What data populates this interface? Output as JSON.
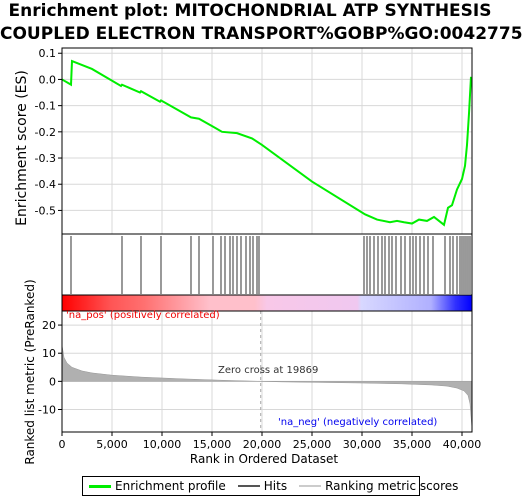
{
  "title": {
    "line1": "Enrichment plot: MITOCHONDRIAL ATP SYNTHESIS",
    "line2": "COUPLED ELECTRON TRANSPORT%GOBP%GO:0042775"
  },
  "colors": {
    "es_line": "#00ee00",
    "hits": "#000000",
    "ranking_fill": "#b0b0b0",
    "pos_label": "#ee0000",
    "neg_label": "#0000ee",
    "bar_red": "#ff0000",
    "bar_pink": "#ffc0cb",
    "bar_blue": "#0000ff"
  },
  "chart_data": [
    {
      "type": "line",
      "name": "enrichment-profile",
      "ylabel": "Enrichment score (ES)",
      "xlim": [
        0,
        41000
      ],
      "ylim": [
        -0.59,
        0.12
      ],
      "yticks": [
        0.1,
        0.0,
        -0.1,
        -0.2,
        -0.3,
        -0.4,
        -0.5
      ],
      "ytick_labels": [
        "0.1",
        "0.0",
        "-0.1",
        "-0.2",
        "-0.3",
        "-0.4",
        "-0.5"
      ],
      "grid": true,
      "x": [
        0,
        900,
        1000,
        3000,
        5900,
        6000,
        7800,
        7900,
        9800,
        9900,
        12900,
        13700,
        15100,
        16000,
        17500,
        19000,
        20000,
        25000,
        30300,
        31500,
        32800,
        33500,
        34200,
        35000,
        35700,
        36500,
        37200,
        38200,
        38600,
        39000,
        39500,
        40000,
        40300,
        40500,
        40700,
        40900
      ],
      "y": [
        0.0,
        -0.02,
        0.07,
        0.04,
        -0.025,
        -0.02,
        -0.05,
        -0.045,
        -0.085,
        -0.08,
        -0.145,
        -0.15,
        -0.18,
        -0.2,
        -0.205,
        -0.225,
        -0.25,
        -0.39,
        -0.515,
        -0.535,
        -0.545,
        -0.54,
        -0.545,
        -0.55,
        -0.535,
        -0.54,
        -0.525,
        -0.555,
        -0.49,
        -0.48,
        -0.42,
        -0.38,
        -0.33,
        -0.25,
        -0.13,
        0.01
      ]
    },
    {
      "type": "hits",
      "name": "hits",
      "positions": [
        900,
        6000,
        7900,
        9900,
        12900,
        13700,
        15100,
        15900,
        16300,
        16800,
        17100,
        17500,
        17900,
        18400,
        18800,
        19100,
        19500,
        19700,
        30200,
        30500,
        30800,
        31200,
        31600,
        32000,
        32300,
        32700,
        33000,
        33400,
        33900,
        34300,
        34800,
        35100,
        35400,
        35800,
        36200,
        36600,
        37100,
        38300,
        38800,
        39100,
        39500,
        39800,
        40000,
        40200,
        40400,
        40600,
        40800
      ]
    },
    {
      "type": "area",
      "name": "ranked-list-metric",
      "ylabel": "Ranked list metric (PreRanked)",
      "xlabel": "Rank in Ordered Dataset",
      "xlim": [
        0,
        41000
      ],
      "ylim": [
        -18,
        25
      ],
      "yticks": [
        20,
        10,
        0,
        -10
      ],
      "ytick_labels": [
        "20",
        "10",
        "0",
        "-10"
      ],
      "xticks": [
        0,
        5000,
        10000,
        15000,
        20000,
        25000,
        30000,
        35000,
        40000
      ],
      "xtick_labels": [
        "0",
        "5,000",
        "10,000",
        "15,000",
        "20,000",
        "25,000",
        "30,000",
        "35,000",
        "40,000"
      ],
      "x": [
        0,
        200,
        500,
        1000,
        2000,
        3000,
        5000,
        8000,
        12000,
        16000,
        19869,
        22000,
        26000,
        30000,
        34000,
        37000,
        38500,
        39500,
        40200,
        40600,
        40800,
        41000
      ],
      "y": [
        13,
        8.5,
        6.5,
        5.0,
        3.7,
        3.0,
        2.2,
        1.5,
        0.9,
        0.4,
        0.0,
        -0.2,
        -0.4,
        -0.6,
        -0.9,
        -1.3,
        -1.7,
        -2.4,
        -3.4,
        -5.0,
        -8.0,
        -17.0
      ],
      "zero_cross_label": "Zero cross at 19869",
      "zero_cross": 19869,
      "pos_label": "'na_pos' (positively correlated)",
      "neg_label": "'na_neg' (negatively correlated)"
    }
  ],
  "legend": {
    "items": [
      {
        "label": "Enrichment profile",
        "color": "#00ee00"
      },
      {
        "label": "Hits",
        "color": "#555555"
      },
      {
        "label": "Ranking metric scores",
        "color": "#cccccc"
      }
    ]
  }
}
